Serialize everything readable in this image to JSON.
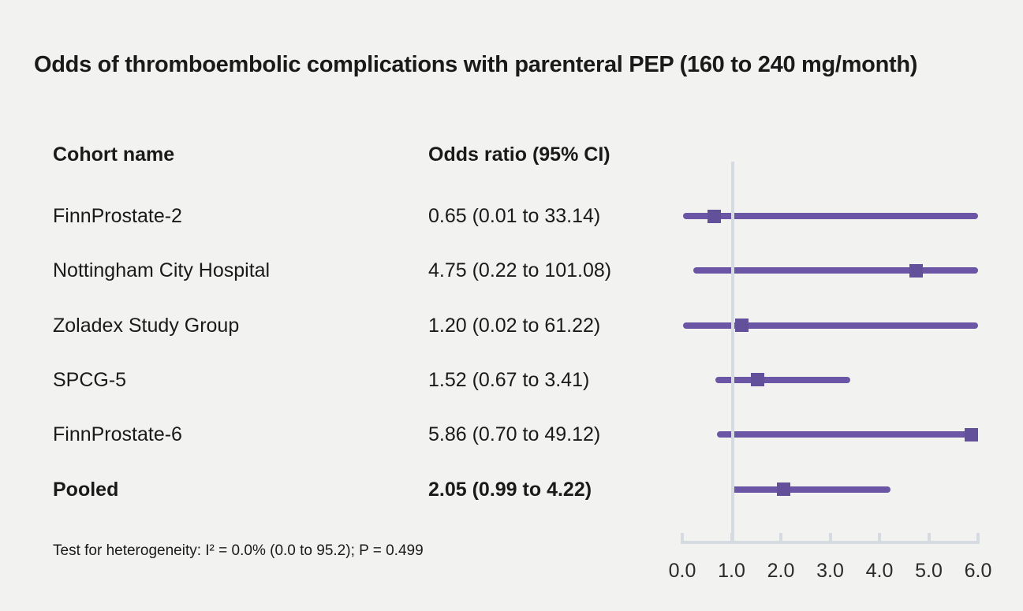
{
  "title": "Odds of thromboembolic complications with parenteral PEP (160 to 240 mg/month)",
  "columns": {
    "cohort": "Cohort name",
    "odds_ratio": "Odds ratio (95% CI)"
  },
  "footnote": "Test for heterogeneity: I² = 0.0% (0.0 to 95.2); P = 0.499",
  "colors": {
    "background": "#f2f2f0",
    "text": "#1a1a1a",
    "line": "#6a56a4",
    "marker": "#63509b",
    "axis": "#d6dbe2"
  },
  "chart_data": {
    "type": "forest",
    "title": "Odds of thromboembolic complications with parenteral PEP (160 to 240 mg/month)",
    "xlabel": "",
    "ylabel": "",
    "x_axis": {
      "min": 0.0,
      "max": 6.0,
      "ticks": [
        "0.0",
        "1.0",
        "2.0",
        "3.0",
        "4.0",
        "5.0",
        "6.0"
      ],
      "tick_values": [
        0.0,
        1.0,
        2.0,
        3.0,
        4.0,
        5.0,
        6.0
      ],
      "reference_line": 1.0,
      "grid": false
    },
    "legend": null,
    "rows": [
      {
        "label": "FinnProstate-2",
        "or_text": "0.65 (0.01 to 33.14)",
        "or": 0.65,
        "ci_low": 0.01,
        "ci_high": 33.14,
        "bold": false
      },
      {
        "label": "Nottingham City Hospital",
        "or_text": "4.75 (0.22 to 101.08)",
        "or": 4.75,
        "ci_low": 0.22,
        "ci_high": 101.08,
        "bold": false
      },
      {
        "label": "Zoladex Study Group",
        "or_text": "1.20 (0.02 to 61.22)",
        "or": 1.2,
        "ci_low": 0.02,
        "ci_high": 61.22,
        "bold": false
      },
      {
        "label": "SPCG-5",
        "or_text": "1.52 (0.67 to 3.41)",
        "or": 1.52,
        "ci_low": 0.67,
        "ci_high": 3.41,
        "bold": false
      },
      {
        "label": "FinnProstate-6",
        "or_text": "5.86 (0.70 to 49.12)",
        "or": 5.86,
        "ci_low": 0.7,
        "ci_high": 49.12,
        "bold": false
      },
      {
        "label": "Pooled",
        "or_text": "2.05 (0.99 to 4.22)",
        "or": 2.05,
        "ci_low": 0.99,
        "ci_high": 4.22,
        "bold": true
      }
    ]
  }
}
